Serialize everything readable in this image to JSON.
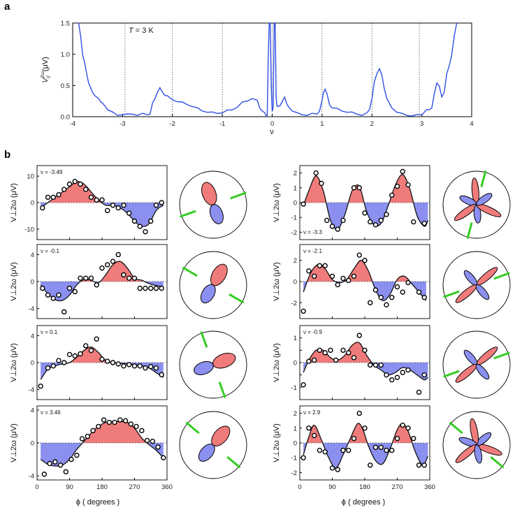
{
  "panel_labels": {
    "a": "a",
    "b": "b"
  },
  "chart_data": [
    {
      "id": "a",
      "type": "line",
      "title": "",
      "annotation": "T = 3 K",
      "annotation_parts": [
        "T",
        " = 3 K"
      ],
      "xlabel": "ν",
      "ylabel": "V∥2ω (μV)",
      "ylabel_parts": {
        "main": "V",
        "sup": "2ω",
        "sub": "//",
        "unit": "(μV)"
      },
      "xlim": [
        -4,
        4
      ],
      "ylim": [
        0,
        1.5
      ],
      "xticks": [
        -4,
        -3,
        -2,
        -1,
        0,
        1,
        2,
        3,
        4
      ],
      "xticklabels": [
        "-4",
        "-3",
        "-2",
        "-1",
        "0",
        "1",
        "2",
        "3",
        "4"
      ],
      "yticks": [
        0,
        0.5,
        1.0,
        1.5
      ],
      "yticklabels": [
        "0.0",
        "0.5",
        "1.0",
        "1.5"
      ],
      "vlines": [
        -2.95,
        -2,
        -1,
        0,
        1,
        2,
        2.95
      ],
      "color": "#3050e6",
      "series": [
        {
          "name": "V//",
          "x": [
            -3.88,
            -3.84,
            -3.8,
            -3.76,
            -3.72,
            -3.68,
            -3.64,
            -3.6,
            -3.56,
            -3.52,
            -3.48,
            -3.44,
            -3.4,
            -3.35,
            -3.3,
            -3.2,
            -3.1,
            -3.0,
            -2.9,
            -2.8,
            -2.7,
            -2.6,
            -2.5,
            -2.45,
            -2.4,
            -2.35,
            -2.3,
            -2.25,
            -2.2,
            -2.15,
            -2.1,
            -2.0,
            -1.9,
            -1.8,
            -1.7,
            -1.6,
            -1.5,
            -1.4,
            -1.3,
            -1.2,
            -1.1,
            -1.0,
            -0.9,
            -0.8,
            -0.7,
            -0.6,
            -0.5,
            -0.4,
            -0.3,
            -0.25,
            -0.2,
            -0.15,
            -0.12,
            -0.1,
            -0.08,
            -0.06,
            -0.04,
            -0.02,
            0.0,
            0.02,
            0.04,
            0.06,
            0.08,
            0.1,
            0.15,
            0.2,
            0.25,
            0.3,
            0.4,
            0.5,
            0.6,
            0.7,
            0.8,
            0.9,
            0.95,
            1.0,
            1.03,
            1.06,
            1.1,
            1.15,
            1.2,
            1.3,
            1.4,
            1.5,
            1.6,
            1.7,
            1.8,
            1.9,
            1.95,
            2.0,
            2.05,
            2.1,
            2.15,
            2.2,
            2.25,
            2.3,
            2.35,
            2.4,
            2.5,
            2.6,
            2.7,
            2.8,
            2.9,
            3.0,
            3.05,
            3.1,
            3.15,
            3.2,
            3.25,
            3.3,
            3.35,
            3.4,
            3.45,
            3.5,
            3.55,
            3.6,
            3.65,
            3.7
          ],
          "y": [
            1.5,
            1.3,
            1.0,
            0.85,
            0.7,
            0.55,
            0.45,
            0.4,
            0.35,
            0.3,
            0.3,
            0.25,
            0.2,
            0.18,
            0.12,
            0.06,
            0.03,
            0.04,
            0.03,
            0.05,
            0.03,
            0.04,
            0.04,
            0.05,
            0.2,
            0.3,
            0.4,
            0.45,
            0.4,
            0.35,
            0.32,
            0.28,
            0.25,
            0.22,
            0.2,
            0.17,
            0.13,
            0.1,
            0.08,
            0.06,
            0.06,
            0.07,
            0.09,
            0.12,
            0.16,
            0.22,
            0.26,
            0.3,
            0.25,
            0.15,
            0.1,
            0.05,
            0.02,
            0.03,
            0.9,
            1.5,
            1.5,
            0.5,
            0.1,
            0.15,
            1.5,
            1.5,
            0.3,
            0.15,
            0.18,
            0.25,
            0.3,
            0.2,
            0.1,
            0.05,
            0.04,
            0.03,
            0.04,
            0.05,
            0.1,
            0.25,
            0.4,
            0.45,
            0.35,
            0.2,
            0.15,
            0.12,
            0.1,
            0.08,
            0.06,
            0.05,
            0.03,
            0.05,
            0.12,
            0.3,
            0.55,
            0.7,
            0.78,
            0.65,
            0.45,
            0.3,
            0.2,
            0.15,
            0.08,
            0.04,
            0.03,
            0.02,
            0.02,
            0.04,
            0.08,
            0.1,
            0.12,
            0.15,
            0.35,
            0.55,
            0.5,
            0.3,
            0.4,
            0.7,
            0.8,
            1.0,
            1.3,
            1.5
          ]
        }
      ]
    },
    {
      "id": "b1",
      "type": "line+scatter",
      "annotation": "ν = -3.49",
      "ylabel": "V⊥2ω (μV)",
      "xlim": [
        0,
        360
      ],
      "ylim": [
        -14,
        14
      ],
      "yticks": [
        -10,
        0,
        10
      ],
      "yticklabels": [
        "-10",
        "0",
        "10"
      ],
      "xticks": [
        0,
        90,
        180,
        270,
        360
      ],
      "points_x": [
        15,
        30,
        45,
        60,
        75,
        90,
        105,
        120,
        135,
        150,
        165,
        180,
        195,
        210,
        225,
        240,
        255,
        270,
        285,
        300,
        315,
        330,
        345
      ],
      "points_y": [
        -2,
        2,
        2,
        3,
        5,
        7,
        8,
        7,
        5,
        2,
        1,
        1,
        -3,
        -1,
        -2,
        -1,
        -4,
        -7,
        -9,
        -11,
        -7,
        -1,
        0
      ],
      "curve_x": [
        10,
        30,
        50,
        70,
        90,
        110,
        130,
        150,
        170,
        190,
        210,
        230,
        250,
        270,
        290,
        310,
        330,
        350
      ],
      "curve_y": [
        -2,
        0,
        2,
        4,
        6,
        8,
        7,
        4,
        1,
        -1,
        -1,
        -2,
        -4,
        -7,
        -9,
        -8,
        -3,
        -1
      ],
      "polar": {
        "red_angle": 60,
        "red_len": 0.5,
        "blue_angle": 250,
        "blue_len": 0.4,
        "green_angle": 20,
        "green_angle2": 200
      }
    },
    {
      "id": "b2",
      "type": "line+scatter",
      "annotation": "ν = -3.3",
      "ylabel": "V⊥2ω (μV)",
      "xlim": [
        0,
        360
      ],
      "ylim": [
        -2.5,
        2.5
      ],
      "yticks": [
        -2,
        -1,
        0,
        1,
        2
      ],
      "yticklabels": [
        "-2",
        "-1",
        "0",
        "1",
        "2"
      ],
      "xticks": [
        0,
        90,
        180,
        270,
        360
      ],
      "points_x": [
        10,
        45,
        60,
        75,
        90,
        105,
        120,
        150,
        165,
        180,
        195,
        210,
        225,
        240,
        255,
        270,
        285,
        300,
        315,
        345
      ],
      "points_y": [
        -0.1,
        2,
        1.3,
        -1.2,
        -1.6,
        -1.8,
        -1.2,
        1,
        1,
        -0.7,
        -1.3,
        -1.5,
        -1.2,
        -0.8,
        0.5,
        1.1,
        2.1,
        1.2,
        -1.3,
        -1.4
      ],
      "curve_x": [
        10,
        25,
        45,
        65,
        85,
        105,
        125,
        145,
        165,
        185,
        205,
        225,
        245,
        265,
        285,
        305,
        325,
        345,
        355
      ],
      "curve_y": [
        -0.2,
        0.8,
        1.8,
        0.8,
        -1.2,
        -1.8,
        -0.8,
        0.8,
        1.1,
        -0.6,
        -1.5,
        -1.4,
        -0.2,
        1.2,
        1.9,
        0.9,
        -0.9,
        -1.6,
        -1.2
      ],
      "polar": {
        "petals": 6,
        "green_angle": 75,
        "green_angle2": 255
      }
    },
    {
      "id": "b3",
      "type": "line+scatter",
      "annotation": "ν = -0.1",
      "ylabel": "V⊥2ω (μV)",
      "xlim": [
        0,
        360
      ],
      "ylim": [
        -5.5,
        5.5
      ],
      "yticks": [
        -4,
        0,
        4
      ],
      "yticklabels": [
        "-4",
        "0",
        "4"
      ],
      "xticks": [
        0,
        90,
        180,
        270,
        360
      ],
      "points_x": [
        15,
        30,
        45,
        60,
        75,
        90,
        105,
        120,
        135,
        150,
        165,
        180,
        195,
        210,
        225,
        240,
        255,
        270,
        285,
        300,
        315,
        330,
        345
      ],
      "points_y": [
        -1,
        -2,
        -2.5,
        -2,
        -4.5,
        -1,
        -1.5,
        0.5,
        0.5,
        0.5,
        -0.5,
        2,
        2.5,
        3,
        4,
        1,
        0.5,
        0.5,
        -1,
        -1,
        -1,
        -1,
        -1
      ],
      "curve_x": [
        10,
        30,
        50,
        70,
        90,
        110,
        130,
        150,
        170,
        190,
        210,
        230,
        250,
        270,
        290,
        310,
        330,
        350
      ],
      "curve_y": [
        -0.5,
        -1.8,
        -2.7,
        -2.8,
        -2,
        -0.5,
        0.3,
        0.2,
        -0.2,
        1,
        2.5,
        3,
        2,
        0.5,
        0.2,
        -0.3,
        -0.6,
        -0.8
      ],
      "polar": {
        "green_angle": 330,
        "green_angle2": 150
      }
    },
    {
      "id": "b4",
      "type": "line+scatter",
      "annotation": "ν = -2.1",
      "ylabel": "V⊥2ω (μV)",
      "xlim": [
        0,
        360
      ],
      "ylim": [
        -3.5,
        3.5
      ],
      "yticks": [
        -2,
        0,
        2
      ],
      "yticklabels": [
        "-2",
        "0",
        "2"
      ],
      "xticks": [
        0,
        90,
        180,
        270,
        360
      ],
      "points_x": [
        10,
        25,
        40,
        55,
        70,
        90,
        105,
        120,
        135,
        150,
        165,
        180,
        195,
        210,
        225,
        240,
        255,
        270,
        285,
        300,
        330,
        345
      ],
      "points_y": [
        -2.8,
        1,
        0.5,
        1.5,
        1.5,
        0.5,
        -0.3,
        0.3,
        0.1,
        0.5,
        2.5,
        2,
        -2,
        -0.8,
        -1.5,
        -2.2,
        -1.5,
        -0.5,
        -1,
        -0.1,
        -1,
        -1.5
      ],
      "curve_x": [
        10,
        30,
        50,
        70,
        90,
        110,
        130,
        150,
        170,
        190,
        210,
        230,
        250,
        270,
        290,
        310,
        330,
        350
      ],
      "curve_y": [
        -1,
        0.8,
        1.6,
        1.2,
        0.2,
        -0.1,
        0.2,
        1.2,
        2,
        1,
        -0.8,
        -1.8,
        -1.2,
        0.2,
        0.5,
        -0.2,
        -1,
        -1.8
      ],
      "polar": {
        "petals": 4,
        "green_angle": 20,
        "green_angle2": 200
      }
    },
    {
      "id": "b5",
      "type": "line+scatter",
      "annotation": "ν = 0.1",
      "ylabel": "V⊥2ω (μV)",
      "xlim": [
        0,
        360
      ],
      "ylim": [
        -5.5,
        5.5
      ],
      "yticks": [
        -4,
        0,
        4
      ],
      "yticklabels": [
        "-4",
        "0",
        "4"
      ],
      "xticks": [
        0,
        90,
        180,
        270,
        360
      ],
      "points_x": [
        10,
        30,
        45,
        60,
        75,
        90,
        105,
        120,
        135,
        150,
        165,
        180,
        195,
        210,
        225,
        240,
        255,
        270,
        285,
        300,
        315,
        330,
        345
      ],
      "points_y": [
        -3.5,
        -0.8,
        -0.5,
        0.3,
        0,
        1.2,
        1,
        1.3,
        2.5,
        1.8,
        3.5,
        0.5,
        0.2,
        0,
        -0.2,
        -0.5,
        -0.3,
        -0.5,
        -0.5,
        -0.8,
        -0.6,
        -0.8,
        -1.8
      ],
      "curve_x": [
        10,
        30,
        50,
        70,
        90,
        110,
        130,
        150,
        170,
        190,
        210,
        230,
        250,
        270,
        290,
        310,
        330,
        350
      ],
      "curve_y": [
        -2.5,
        -1,
        -0.5,
        -0.2,
        0,
        0.8,
        1.8,
        2.3,
        1.5,
        0.3,
        0,
        -0.1,
        -0.2,
        -0.3,
        -0.5,
        -0.8,
        -1.5,
        -2.2
      ],
      "polar": {
        "green_angle": 290,
        "green_angle2": 110
      }
    },
    {
      "id": "b6",
      "type": "line+scatter",
      "annotation": "ν = -0.9",
      "ylabel": "V⊥2ω (μV)",
      "xlim": [
        0,
        360
      ],
      "ylim": [
        -1.5,
        1.5
      ],
      "yticks": [
        -1,
        -0.5,
        0,
        0.5,
        1
      ],
      "yticklabels": [
        "-1",
        "",
        "0",
        "",
        "1"
      ],
      "xticks": [
        0,
        90,
        180,
        270,
        360
      ],
      "points_x": [
        10,
        25,
        40,
        55,
        70,
        85,
        100,
        120,
        135,
        150,
        165,
        180,
        195,
        210,
        225,
        240,
        255,
        270,
        285,
        300,
        330,
        345
      ],
      "points_y": [
        -0.9,
        0.05,
        0.1,
        0.5,
        0.4,
        0.5,
        0.1,
        0.5,
        0.4,
        0.2,
        1.1,
        0.5,
        -0.1,
        -0.1,
        -0.1,
        -0.5,
        -0.7,
        -0.6,
        -0.4,
        -0.3,
        -1.2,
        -0.5
      ],
      "curve_x": [
        10,
        25,
        45,
        65,
        85,
        105,
        125,
        145,
        165,
        185,
        205,
        225,
        245,
        265,
        285,
        305,
        325,
        345,
        355
      ],
      "curve_y": [
        -0.4,
        0.1,
        0.5,
        0.5,
        0.2,
        0.1,
        0.3,
        0.7,
        0.8,
        0.3,
        -0.1,
        -0.3,
        -0.5,
        -0.4,
        -0.2,
        -0.3,
        -0.5,
        -0.7,
        -0.6
      ],
      "polar": {
        "petals": 4,
        "green_angle": 20,
        "green_angle2": 200
      }
    },
    {
      "id": "b7",
      "type": "line+scatter",
      "annotation": "ν = 3.46",
      "ylabel": "V⊥2ω (μV)",
      "xlim": [
        0,
        360
      ],
      "ylim": [
        -4.5,
        4.5
      ],
      "yticks": [
        -4,
        0,
        4
      ],
      "yticklabels": [
        "-4",
        "0",
        "4"
      ],
      "xticks": [
        0,
        90,
        180,
        270,
        360
      ],
      "points_x": [
        20,
        35,
        50,
        65,
        80,
        95,
        110,
        125,
        140,
        155,
        170,
        185,
        200,
        215,
        230,
        245,
        260,
        275,
        290,
        305,
        320,
        335,
        350
      ],
      "points_y": [
        -3.8,
        -2.5,
        -2.3,
        -2.7,
        -3.5,
        -2,
        -1.5,
        0.5,
        0.8,
        1.5,
        2,
        2.8,
        2.5,
        2.5,
        2.8,
        2.7,
        2.3,
        2,
        1.5,
        0.3,
        0.2,
        -0.5,
        -1.8
      ],
      "curve_x": [
        10,
        30,
        50,
        70,
        90,
        110,
        130,
        150,
        170,
        190,
        210,
        230,
        250,
        270,
        290,
        310,
        330,
        350
      ],
      "curve_y": [
        -2,
        -2.6,
        -2.8,
        -2.7,
        -2,
        -0.8,
        0.2,
        1.2,
        2,
        2.5,
        2.6,
        2.6,
        2.5,
        1.8,
        0.6,
        -0.2,
        -0.9,
        -1.8
      ],
      "polar": {
        "green_angle": 320,
        "green_angle2": 140
      }
    },
    {
      "id": "b8",
      "type": "line+scatter",
      "annotation": "ν = 2.9",
      "ylabel": "V⊥2ω (μV)",
      "xlim": [
        0,
        360
      ],
      "ylim": [
        -2.5,
        2.5
      ],
      "yticks": [
        -2,
        -1,
        0,
        1,
        2
      ],
      "yticklabels": [
        "-2",
        "-1",
        "0",
        "1",
        "2"
      ],
      "xticks": [
        0,
        90,
        180,
        270,
        360
      ],
      "points_x": [
        10,
        25,
        40,
        55,
        70,
        90,
        105,
        120,
        135,
        150,
        165,
        180,
        195,
        210,
        225,
        240,
        255,
        270,
        285,
        300,
        315,
        330,
        345
      ],
      "points_y": [
        -1,
        1,
        0.5,
        -0.5,
        -0.6,
        -1.7,
        -1.8,
        -0.5,
        -0.5,
        0.3,
        2,
        1,
        -1.5,
        -0.3,
        -0.3,
        -0.5,
        -0.5,
        0.3,
        1.2,
        1,
        0.3,
        -1.5,
        -1.5
      ],
      "curve_x": [
        10,
        25,
        40,
        60,
        80,
        100,
        120,
        140,
        160,
        175,
        190,
        210,
        230,
        250,
        270,
        285,
        300,
        320,
        340,
        355
      ],
      "curve_y": [
        -0.8,
        0.4,
        1.2,
        0.2,
        -1,
        -1.7,
        -0.8,
        0.3,
        1.3,
        0.9,
        -0.2,
        -1.2,
        -1.4,
        -0.4,
        0.9,
        1.3,
        0.8,
        -0.6,
        -1.5,
        -0.9
      ],
      "polar": {
        "petals": 6,
        "green_angle": 320,
        "green_angle2": 140
      }
    }
  ],
  "bottom_xlabel": "ϕ ( degrees )",
  "bottom_xticks": [
    "0",
    "90",
    "180",
    "270",
    "360"
  ],
  "colors": {
    "red": "#f07b7b",
    "blue": "#8a8ff0",
    "green": "#33cc22",
    "line": "#111111",
    "blueline": "#3050e6"
  }
}
